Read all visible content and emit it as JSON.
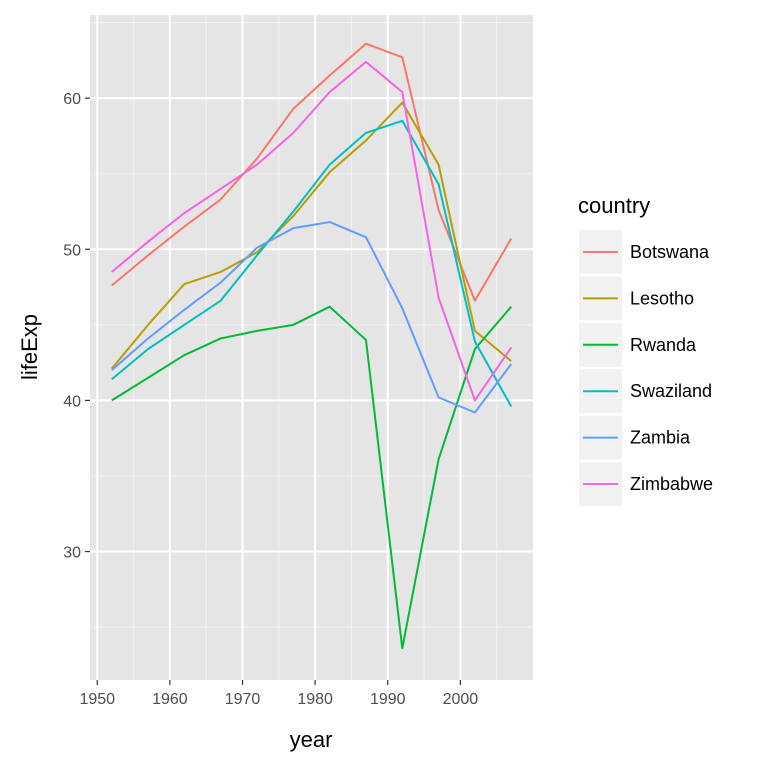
{
  "chart_data": {
    "type": "line",
    "xlabel": "year",
    "ylabel": "lifeExp",
    "xlim": [
      1949,
      2010
    ],
    "ylim": [
      21.5,
      65.5
    ],
    "xticks": [
      1950,
      1960,
      1970,
      1980,
      1990,
      2000
    ],
    "yticks": [
      30,
      40,
      50,
      60
    ],
    "grid": true,
    "background": "#e5e5e5",
    "legend": {
      "title": "country",
      "position": "right"
    },
    "x": [
      1952,
      1957,
      1962,
      1967,
      1972,
      1977,
      1982,
      1987,
      1992,
      1997,
      2002,
      2007
    ],
    "series": [
      {
        "name": "Botswana",
        "color": "#f8766d",
        "values": [
          47.6,
          49.6,
          51.5,
          53.3,
          56.0,
          59.3,
          61.5,
          63.6,
          62.7,
          52.6,
          46.6,
          50.7
        ]
      },
      {
        "name": "Lesotho",
        "color": "#b79f00",
        "values": [
          42.1,
          45.0,
          47.7,
          48.5,
          49.8,
          52.2,
          55.1,
          57.2,
          59.7,
          55.6,
          44.6,
          42.6
        ]
      },
      {
        "name": "Rwanda",
        "color": "#00ba38",
        "values": [
          40.0,
          41.5,
          43.0,
          44.1,
          44.6,
          45.0,
          46.2,
          44.0,
          23.6,
          36.1,
          43.4,
          46.2
        ]
      },
      {
        "name": "Swaziland",
        "color": "#00bfc4",
        "values": [
          41.4,
          43.4,
          45.0,
          46.6,
          49.6,
          52.5,
          55.6,
          57.7,
          58.5,
          54.3,
          43.9,
          39.6
        ]
      },
      {
        "name": "Zambia",
        "color": "#619cff",
        "values": [
          42.0,
          44.1,
          46.0,
          47.8,
          50.1,
          51.4,
          51.8,
          50.8,
          46.1,
          40.2,
          39.2,
          42.4
        ]
      },
      {
        "name": "Zimbabwe",
        "color": "#f564e3",
        "values": [
          48.5,
          50.5,
          52.4,
          54.0,
          55.6,
          57.7,
          60.4,
          62.4,
          60.4,
          46.8,
          40.0,
          43.5
        ]
      }
    ]
  }
}
